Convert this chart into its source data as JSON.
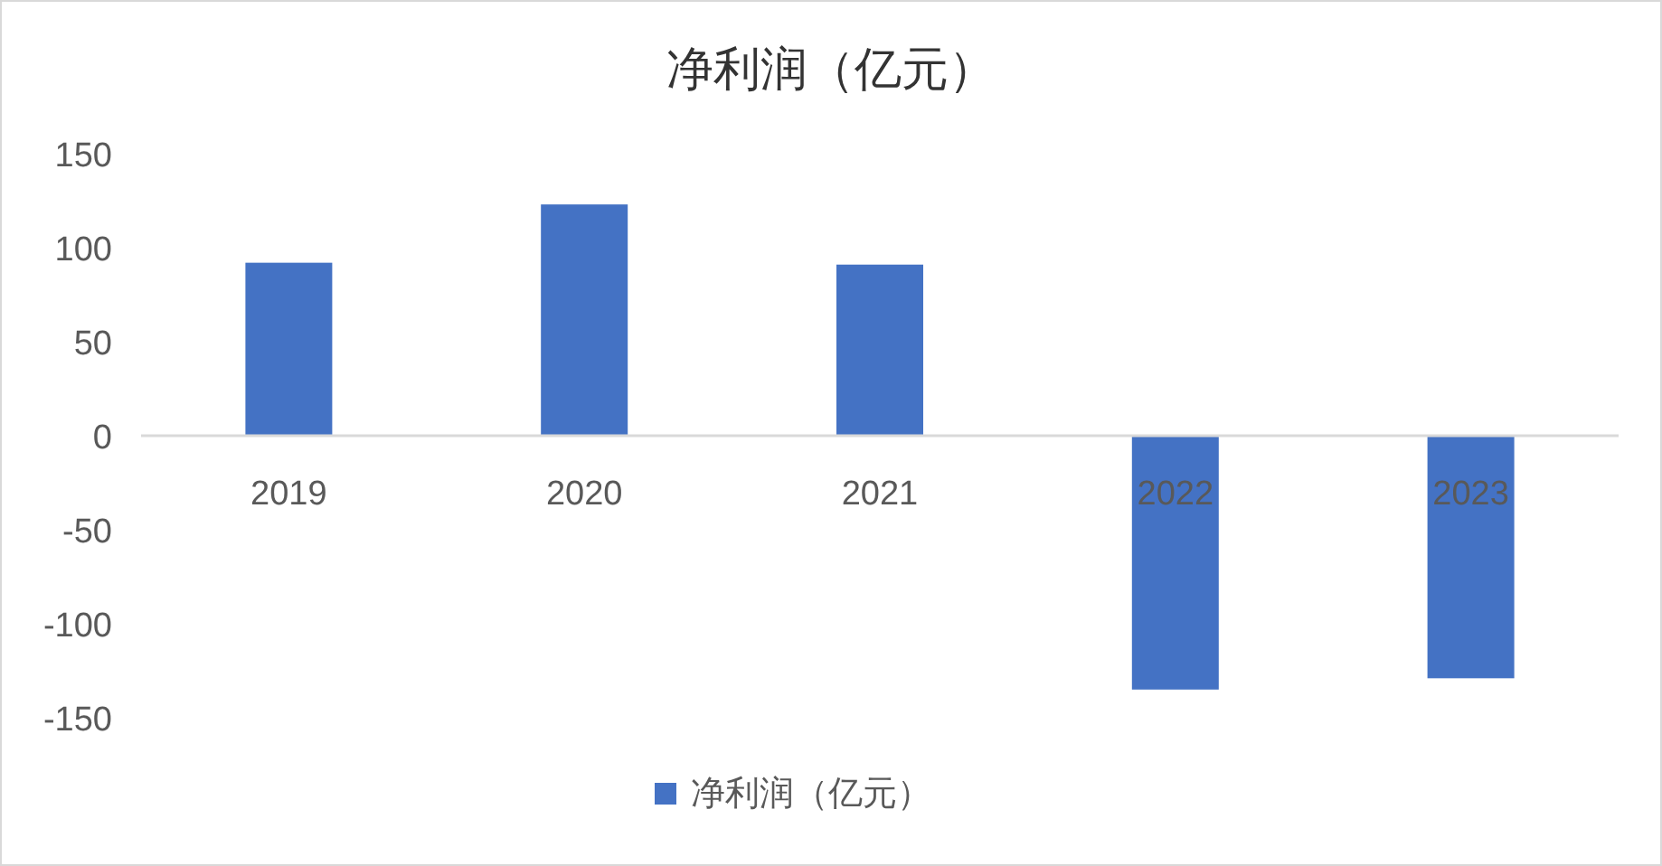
{
  "chart_data": {
    "type": "bar",
    "title": "净利润（亿元）",
    "categories": [
      "2019",
      "2020",
      "2021",
      "2022",
      "2023"
    ],
    "series": [
      {
        "name": "净利润（亿元）",
        "color": "#4472c4",
        "values": [
          92,
          123,
          91,
          -135,
          -129
        ]
      }
    ],
    "ylim": [
      -150,
      150
    ],
    "yticks": [
      -150,
      -100,
      -50,
      0,
      50,
      100,
      150
    ],
    "grid": false,
    "legend": "bottom"
  }
}
